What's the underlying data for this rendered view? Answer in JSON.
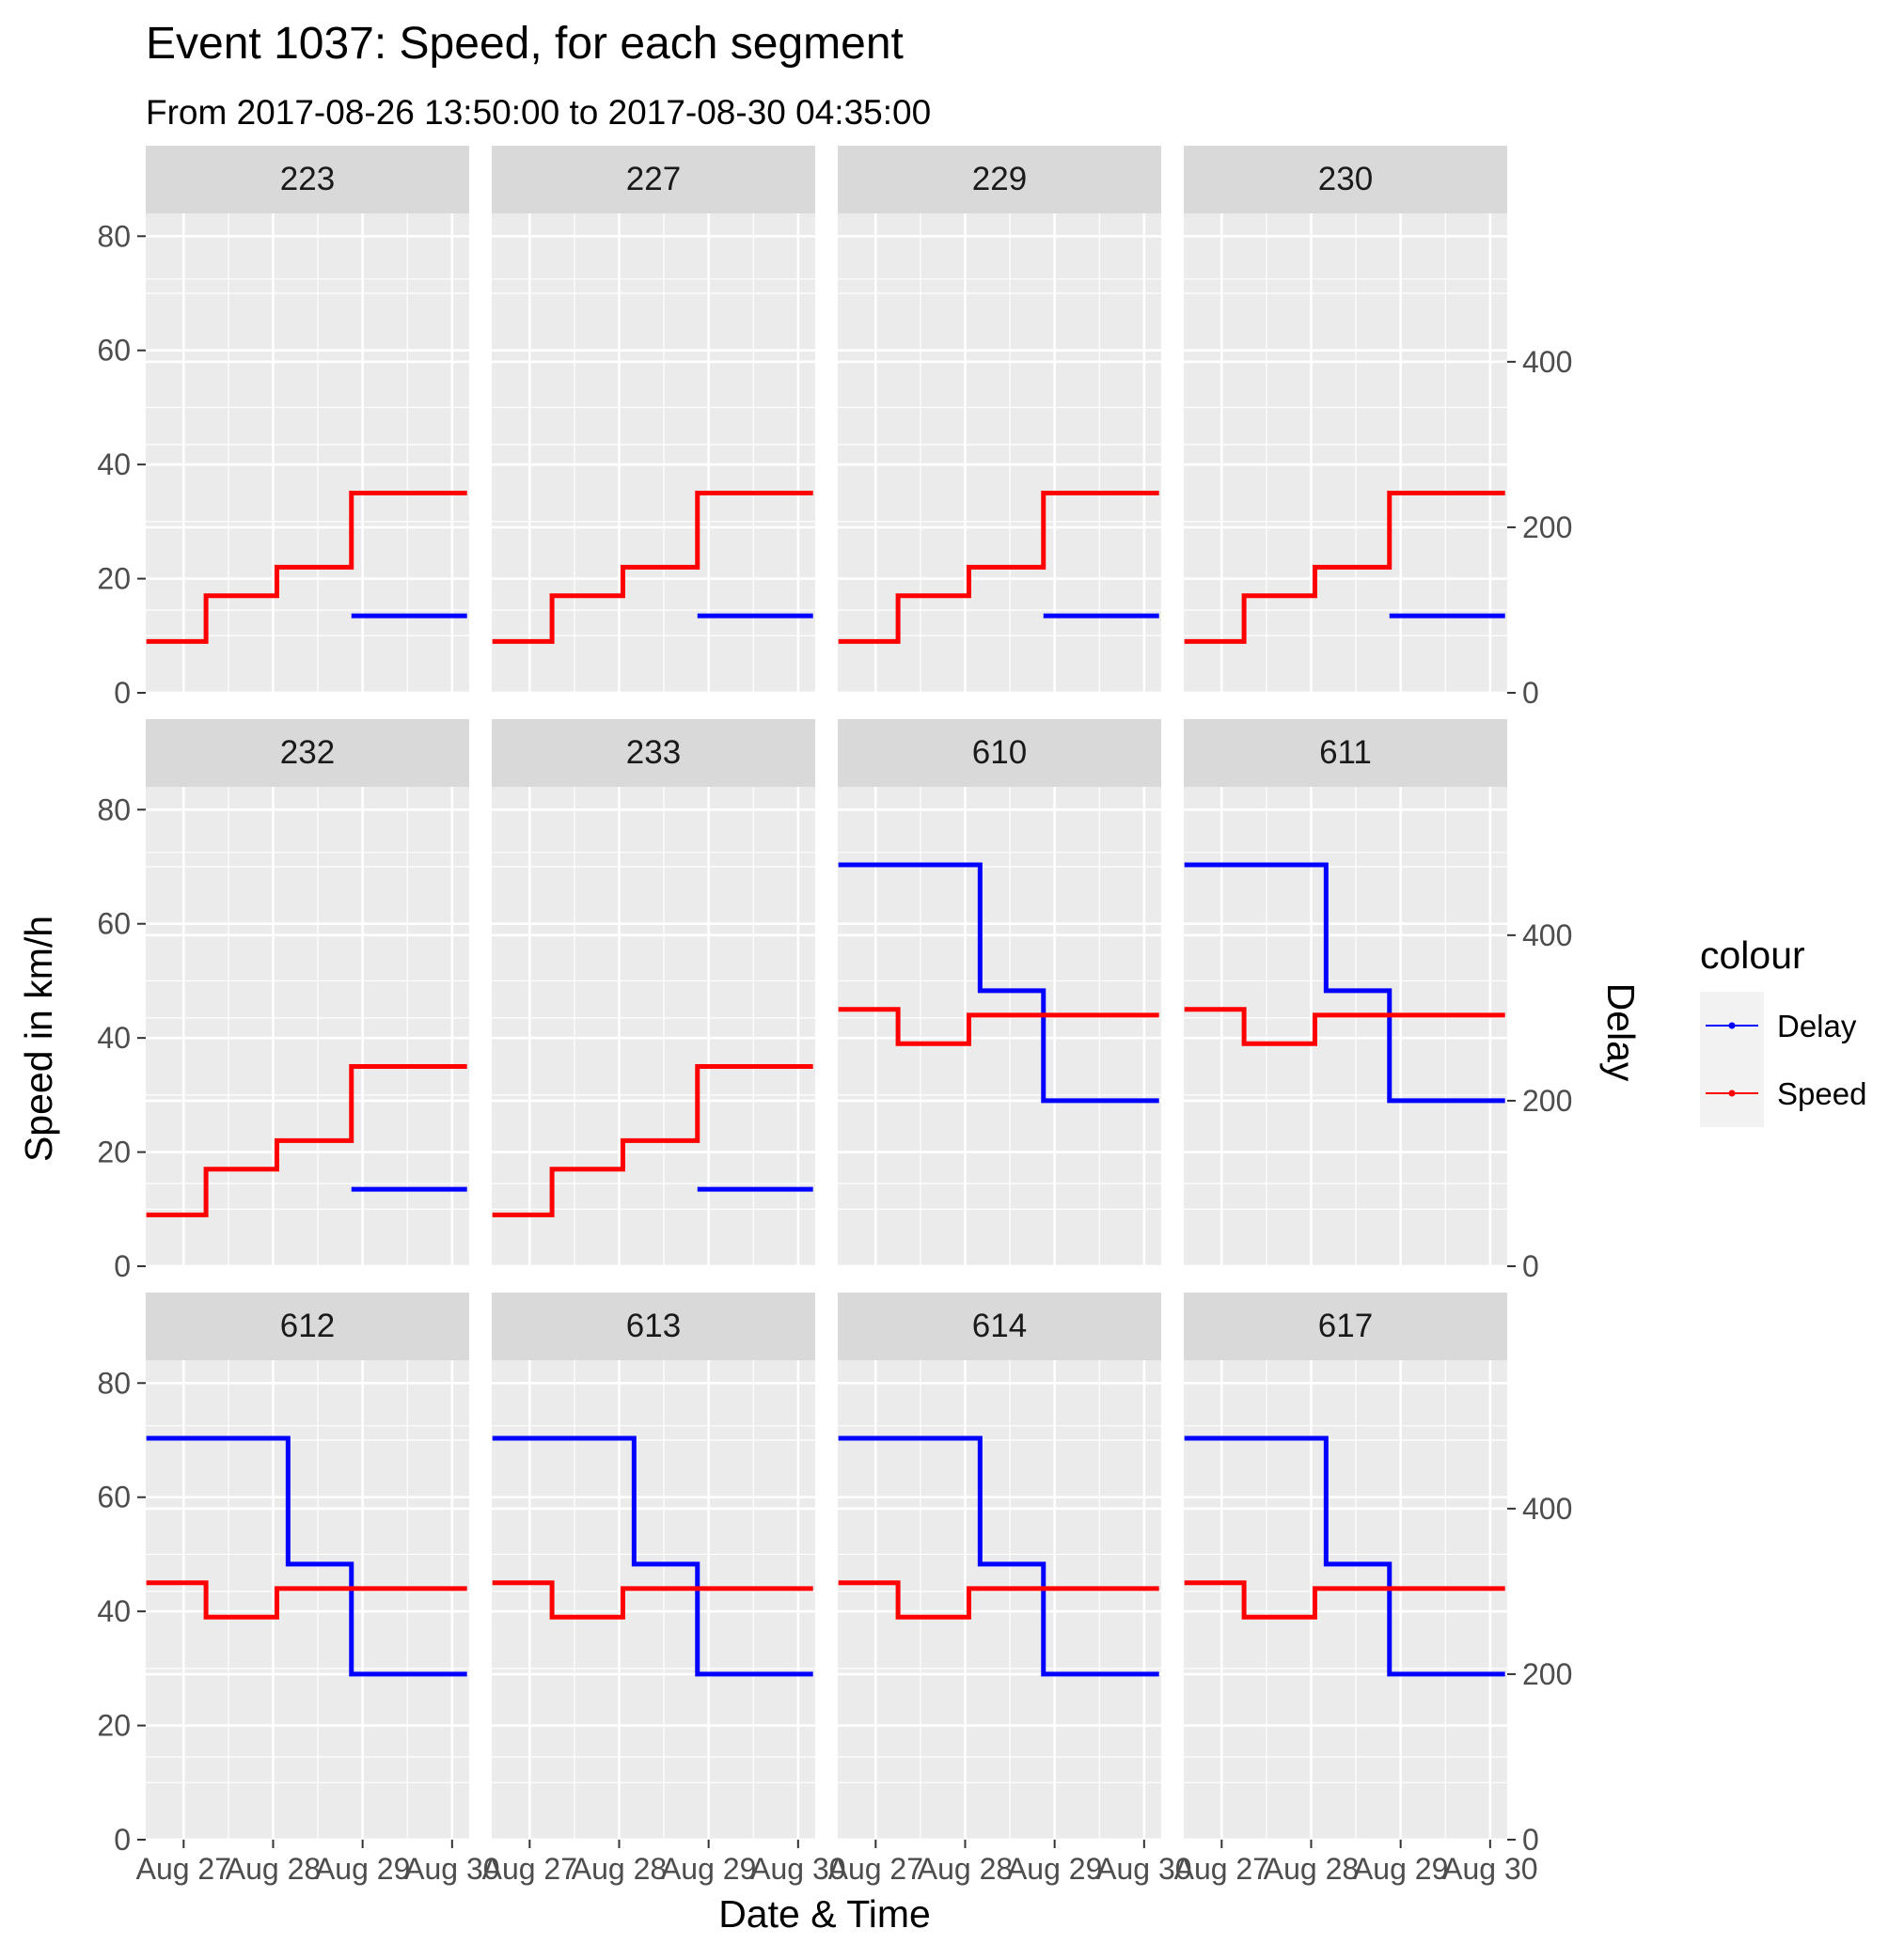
{
  "chart_data": {
    "type": "line",
    "title": "Event 1037: Speed, for each segment",
    "subtitle": "From 2017-08-26 13:50:00 to 2017-08-30 04:35:00",
    "xlabel": "Date & Time",
    "ylabel": "Speed in km/h",
    "y2label": "Delay",
    "x_range": [
      "2017-08-26 13:50",
      "2017-08-30 04:35"
    ],
    "x_ticks": [
      "Aug 27",
      "Aug 28",
      "Aug 29",
      "Aug 30"
    ],
    "ylim": [
      0,
      84
    ],
    "y_ticks": [
      0,
      20,
      40,
      60,
      80
    ],
    "y2_ticks": [
      0,
      200,
      400
    ],
    "y2_scale_note": "Delay axis: 0 at Speed 0, 400 at Speed 58",
    "grid": true,
    "legend": {
      "title": "colour",
      "position": "right",
      "entries": [
        {
          "name": "Delay",
          "color": "#0000ff"
        },
        {
          "name": "Speed",
          "color": "#ff0000"
        }
      ]
    },
    "colors": {
      "Delay": "#0000ff",
      "Speed": "#ff0000",
      "panel_bg": "#ebebeb",
      "strip_bg": "#d9d9d9",
      "grid": "#ffffff"
    },
    "panels": [
      {
        "label": "223",
        "speed": [
          [
            "2017-08-26 14:00",
            9
          ],
          [
            "2017-08-27 06:00",
            17
          ],
          [
            "2017-08-28 01:00",
            22
          ],
          [
            "2017-08-28 21:00",
            35
          ],
          [
            "2017-08-30 04:00",
            35
          ]
        ],
        "delay": [
          [
            "2017-08-28 21:00",
            93
          ],
          [
            "2017-08-30 04:00",
            93
          ]
        ]
      },
      {
        "label": "227",
        "speed": [
          [
            "2017-08-26 14:00",
            9
          ],
          [
            "2017-08-27 06:00",
            17
          ],
          [
            "2017-08-28 01:00",
            22
          ],
          [
            "2017-08-28 21:00",
            35
          ],
          [
            "2017-08-30 04:00",
            35
          ]
        ],
        "delay": [
          [
            "2017-08-28 21:00",
            93
          ],
          [
            "2017-08-30 04:00",
            93
          ]
        ]
      },
      {
        "label": "229",
        "speed": [
          [
            "2017-08-26 14:00",
            9
          ],
          [
            "2017-08-27 06:00",
            17
          ],
          [
            "2017-08-28 01:00",
            22
          ],
          [
            "2017-08-28 21:00",
            35
          ],
          [
            "2017-08-30 04:00",
            35
          ]
        ],
        "delay": [
          [
            "2017-08-28 21:00",
            93
          ],
          [
            "2017-08-30 04:00",
            93
          ]
        ]
      },
      {
        "label": "230",
        "speed": [
          [
            "2017-08-26 14:00",
            9
          ],
          [
            "2017-08-27 06:00",
            17
          ],
          [
            "2017-08-28 01:00",
            22
          ],
          [
            "2017-08-28 21:00",
            35
          ],
          [
            "2017-08-30 04:00",
            35
          ]
        ],
        "delay": [
          [
            "2017-08-28 21:00",
            93
          ],
          [
            "2017-08-30 04:00",
            93
          ]
        ]
      },
      {
        "label": "232",
        "speed": [
          [
            "2017-08-26 14:00",
            9
          ],
          [
            "2017-08-27 06:00",
            17
          ],
          [
            "2017-08-28 01:00",
            22
          ],
          [
            "2017-08-28 21:00",
            35
          ],
          [
            "2017-08-30 04:00",
            35
          ]
        ],
        "delay": [
          [
            "2017-08-28 21:00",
            93
          ],
          [
            "2017-08-30 04:00",
            93
          ]
        ]
      },
      {
        "label": "233",
        "speed": [
          [
            "2017-08-26 14:00",
            9
          ],
          [
            "2017-08-27 06:00",
            17
          ],
          [
            "2017-08-28 01:00",
            22
          ],
          [
            "2017-08-28 21:00",
            35
          ],
          [
            "2017-08-30 04:00",
            35
          ]
        ],
        "delay": [
          [
            "2017-08-28 21:00",
            93
          ],
          [
            "2017-08-30 04:00",
            93
          ]
        ]
      },
      {
        "label": "610",
        "speed": [
          [
            "2017-08-26 14:00",
            45
          ],
          [
            "2017-08-27 06:00",
            39
          ],
          [
            "2017-08-28 01:00",
            44
          ],
          [
            "2017-08-28 21:00",
            44
          ],
          [
            "2017-08-30 04:00",
            44
          ]
        ],
        "delay": [
          [
            "2017-08-26 14:00",
            485
          ],
          [
            "2017-08-27 06:00",
            485
          ],
          [
            "2017-08-28 04:00",
            333
          ],
          [
            "2017-08-28 21:00",
            200
          ],
          [
            "2017-08-30 04:00",
            200
          ]
        ]
      },
      {
        "label": "611",
        "speed": [
          [
            "2017-08-26 14:00",
            45
          ],
          [
            "2017-08-27 06:00",
            39
          ],
          [
            "2017-08-28 01:00",
            44
          ],
          [
            "2017-08-28 21:00",
            44
          ],
          [
            "2017-08-30 04:00",
            44
          ]
        ],
        "delay": [
          [
            "2017-08-26 14:00",
            485
          ],
          [
            "2017-08-27 06:00",
            485
          ],
          [
            "2017-08-28 04:00",
            333
          ],
          [
            "2017-08-28 21:00",
            200
          ],
          [
            "2017-08-30 04:00",
            200
          ]
        ]
      },
      {
        "label": "612",
        "speed": [
          [
            "2017-08-26 14:00",
            45
          ],
          [
            "2017-08-27 06:00",
            39
          ],
          [
            "2017-08-28 01:00",
            44
          ],
          [
            "2017-08-28 21:00",
            44
          ],
          [
            "2017-08-30 04:00",
            44
          ]
        ],
        "delay": [
          [
            "2017-08-26 14:00",
            485
          ],
          [
            "2017-08-27 06:00",
            485
          ],
          [
            "2017-08-28 04:00",
            333
          ],
          [
            "2017-08-28 21:00",
            200
          ],
          [
            "2017-08-30 04:00",
            200
          ]
        ]
      },
      {
        "label": "613",
        "speed": [
          [
            "2017-08-26 14:00",
            45
          ],
          [
            "2017-08-27 06:00",
            39
          ],
          [
            "2017-08-28 01:00",
            44
          ],
          [
            "2017-08-28 21:00",
            44
          ],
          [
            "2017-08-30 04:00",
            44
          ]
        ],
        "delay": [
          [
            "2017-08-26 14:00",
            485
          ],
          [
            "2017-08-27 06:00",
            485
          ],
          [
            "2017-08-28 04:00",
            333
          ],
          [
            "2017-08-28 21:00",
            200
          ],
          [
            "2017-08-30 04:00",
            200
          ]
        ]
      },
      {
        "label": "614",
        "speed": [
          [
            "2017-08-26 14:00",
            45
          ],
          [
            "2017-08-27 06:00",
            39
          ],
          [
            "2017-08-28 01:00",
            44
          ],
          [
            "2017-08-28 21:00",
            44
          ],
          [
            "2017-08-30 04:00",
            44
          ]
        ],
        "delay": [
          [
            "2017-08-26 14:00",
            485
          ],
          [
            "2017-08-27 06:00",
            485
          ],
          [
            "2017-08-28 04:00",
            333
          ],
          [
            "2017-08-28 21:00",
            200
          ],
          [
            "2017-08-30 04:00",
            200
          ]
        ]
      },
      {
        "label": "617",
        "speed": [
          [
            "2017-08-26 14:00",
            45
          ],
          [
            "2017-08-27 06:00",
            39
          ],
          [
            "2017-08-28 01:00",
            44
          ],
          [
            "2017-08-28 21:00",
            44
          ],
          [
            "2017-08-30 04:00",
            44
          ]
        ],
        "delay": [
          [
            "2017-08-26 14:00",
            485
          ],
          [
            "2017-08-27 06:00",
            485
          ],
          [
            "2017-08-28 04:00",
            333
          ],
          [
            "2017-08-28 21:00",
            200
          ],
          [
            "2017-08-30 04:00",
            200
          ]
        ]
      }
    ]
  }
}
